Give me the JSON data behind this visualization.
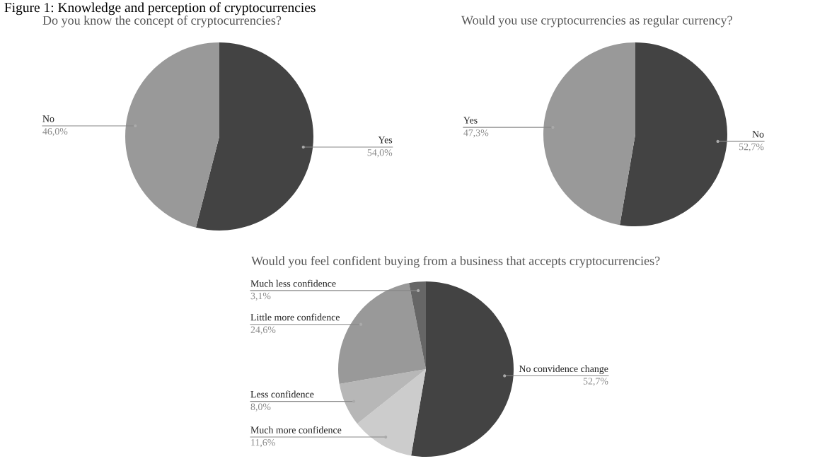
{
  "chart_data": [
    {
      "type": "pie",
      "title": "Do you know the concept of cryptocurrencies?",
      "categories": [
        "Yes",
        "No"
      ],
      "values": [
        54.0,
        46.0
      ],
      "colors": [
        "#434343",
        "#999999"
      ],
      "value_labels": [
        "54,0%",
        "46,0%"
      ],
      "annotations": [
        "Figure 1: Knowledge and perception of cryptocurrencies"
      ]
    },
    {
      "type": "pie",
      "title": "Would you use cryptocurrencies as regular currency?",
      "categories": [
        "No",
        "Yes"
      ],
      "values": [
        52.7,
        47.3
      ],
      "colors": [
        "#434343",
        "#999999"
      ],
      "value_labels": [
        "52,7%",
        "47,3%"
      ]
    },
    {
      "type": "pie",
      "title": "Would you feel confident buying from a business that accepts cryptocurrencies?",
      "categories": [
        "No convidence change",
        "Much more confidence",
        "Less confidence",
        "Little more confidence",
        "Much less confidence"
      ],
      "values": [
        52.7,
        11.6,
        8.0,
        24.6,
        3.1
      ],
      "colors": [
        "#434343",
        "#cccccc",
        "#b7b7b7",
        "#999999",
        "#666666"
      ],
      "value_labels": [
        "52,7%",
        "11,6%",
        "8,0%",
        "24,6%",
        "3,1%"
      ]
    }
  ]
}
